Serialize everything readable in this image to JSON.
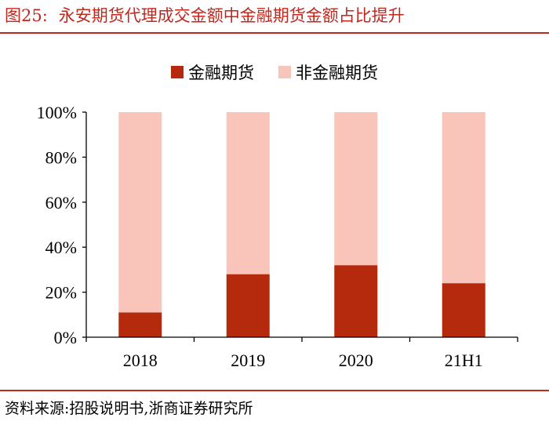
{
  "figure": {
    "number": "图25:",
    "title": "永安期货代理成交金额中金融期货金额占比提升",
    "source": "资料来源:招股说明书,浙商证券研究所"
  },
  "colors": {
    "financial": "#b52a0c",
    "non_financial": "#f9c4b9",
    "accent": "#c0281e",
    "axis": "#000000"
  },
  "chart_data": {
    "type": "bar",
    "stacked": true,
    "title": "永安期货代理成交金额中金融期货金额占比提升",
    "categories": [
      "2018",
      "2019",
      "2020",
      "21H1"
    ],
    "series": [
      {
        "name": "金融期货",
        "values": [
          11,
          28,
          32,
          24
        ]
      },
      {
        "name": "非金融期货",
        "values": [
          89,
          72,
          68,
          76
        ]
      }
    ],
    "ylim": [
      0,
      100
    ],
    "yticks": [
      0,
      20,
      40,
      60,
      80,
      100
    ],
    "ytick_labels": [
      "0%",
      "20%",
      "40%",
      "60%",
      "80%",
      "100%"
    ],
    "xlabel": "",
    "ylabel": "",
    "legend": "top-center",
    "grid": false
  }
}
